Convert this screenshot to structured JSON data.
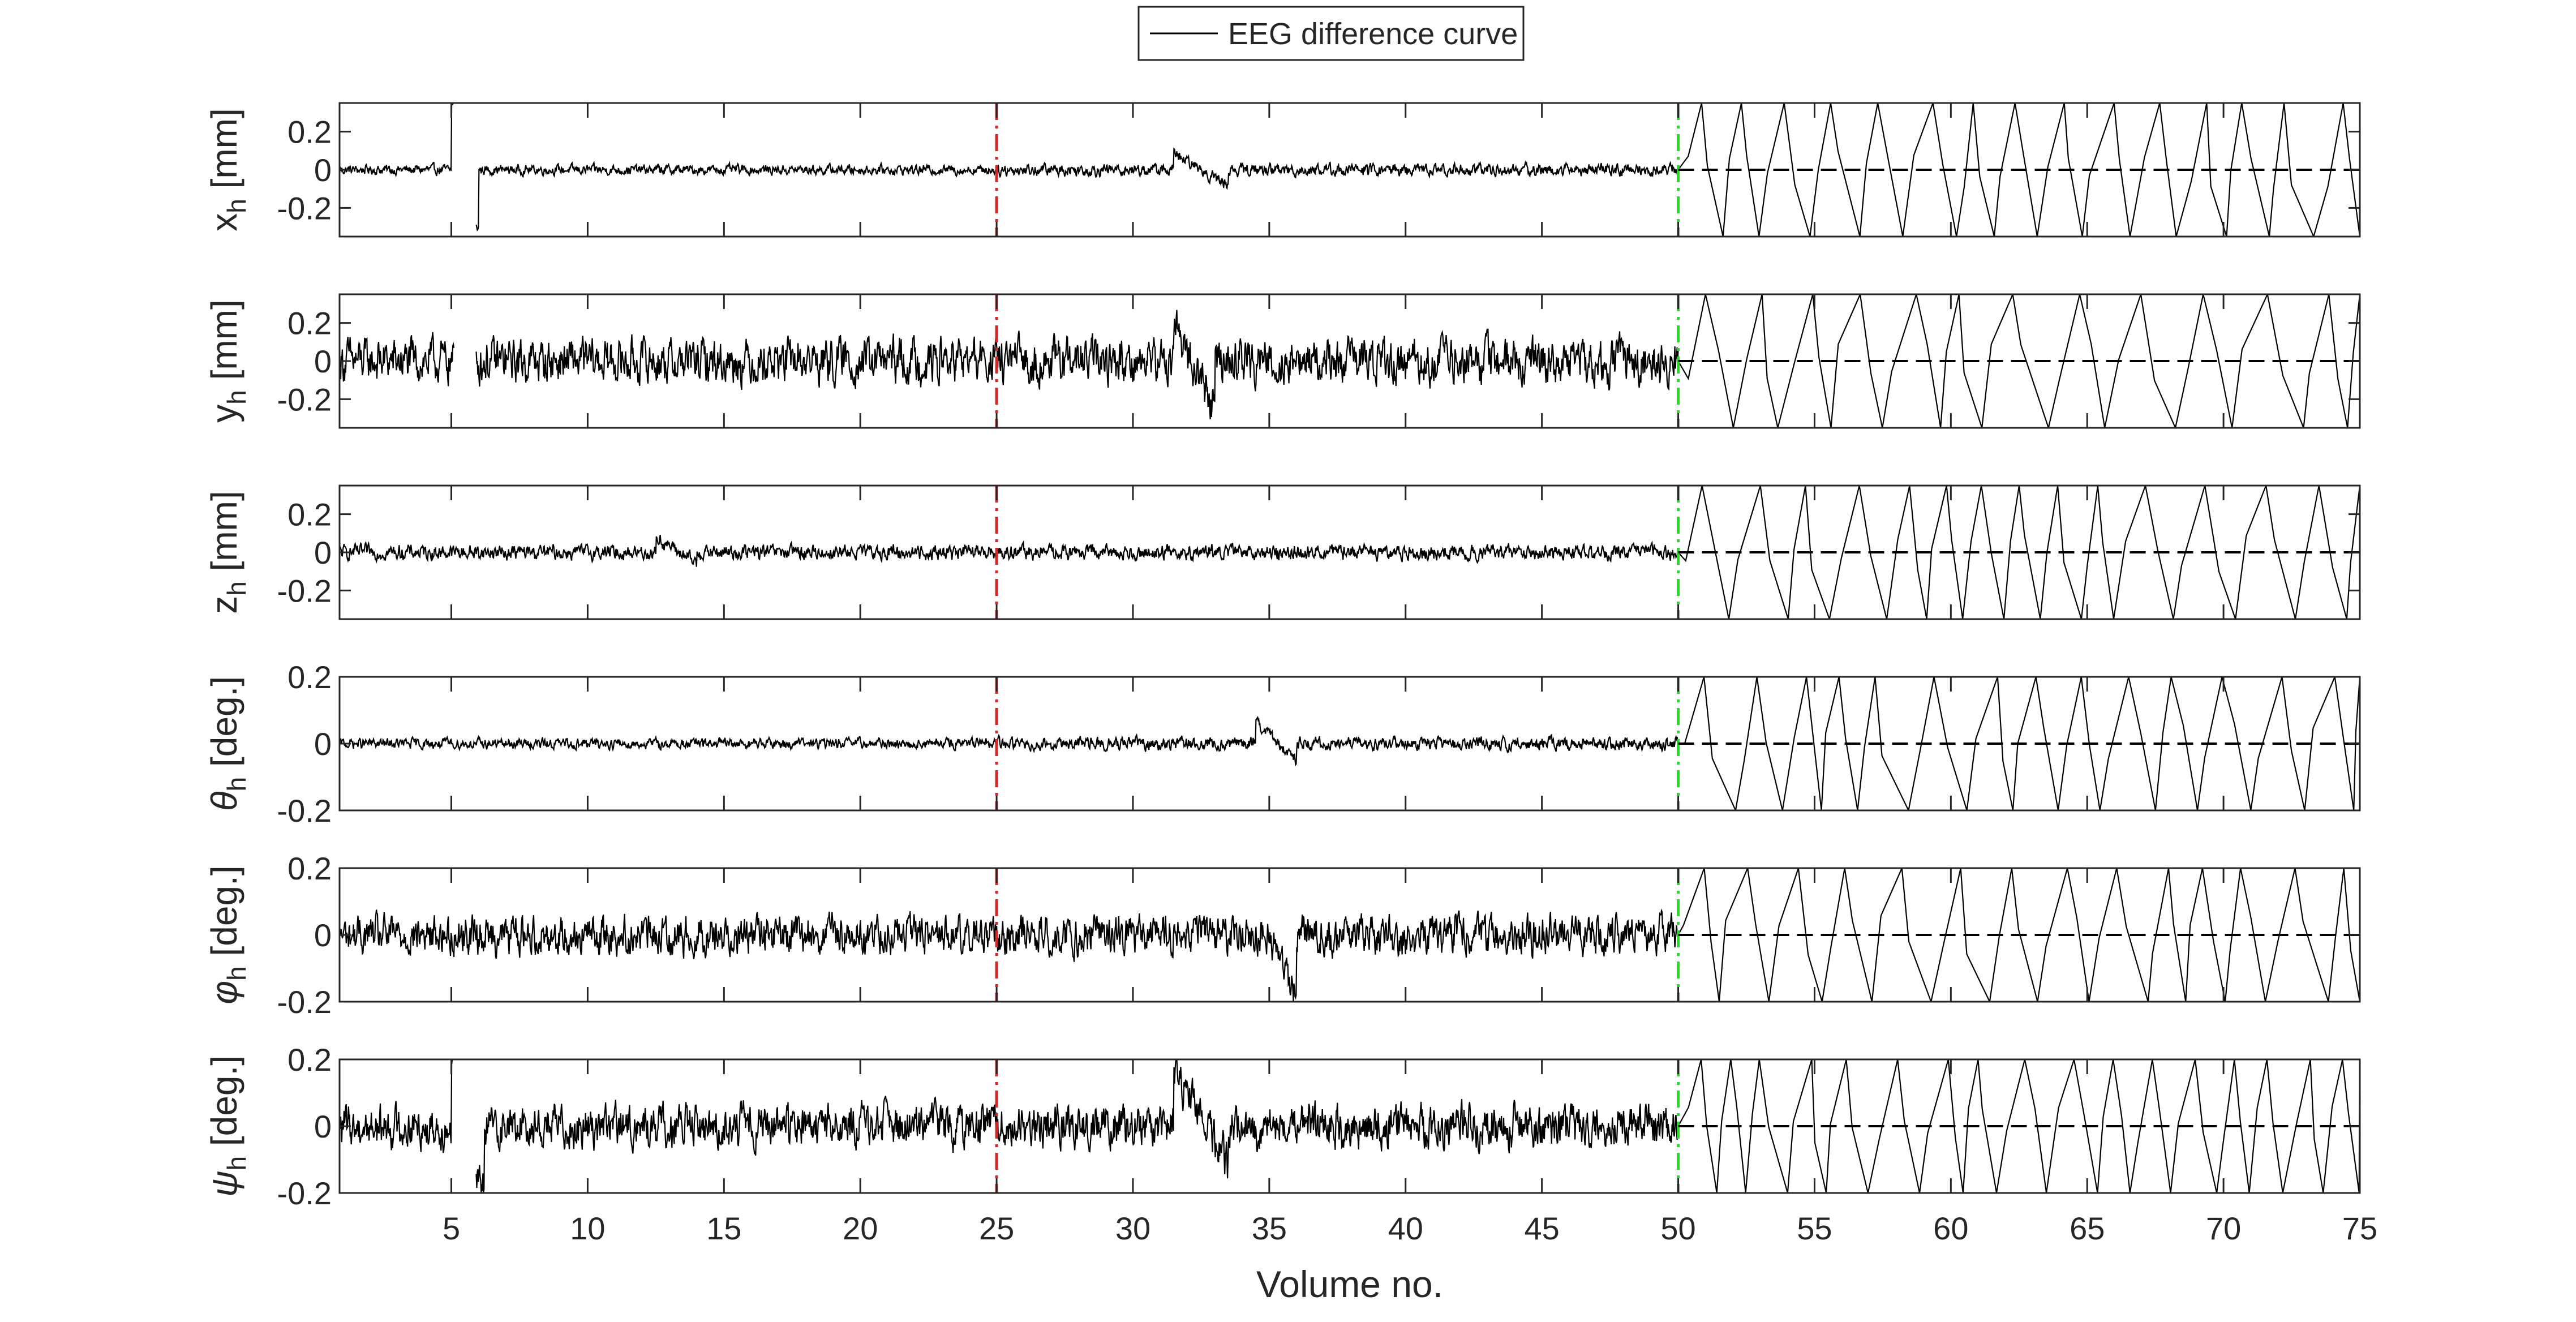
{
  "chart_data": {
    "type": "line",
    "legend": {
      "position": "top-center",
      "entries": [
        "EEG difference curve"
      ]
    },
    "xlabel": "Volume no.",
    "xlim": [
      0.9,
      75
    ],
    "xticks": [
      5,
      10,
      15,
      20,
      25,
      30,
      35,
      40,
      45,
      50,
      55,
      60,
      65,
      70,
      75
    ],
    "vertical_markers": [
      {
        "x": 25,
        "color": "#d62728",
        "style": "dash-dot"
      },
      {
        "x": 50,
        "color": "#1ee01e",
        "style": "dash-dot"
      }
    ],
    "zero_reference": {
      "y": 0,
      "x_from": 50,
      "x_to": 75,
      "style": "dashed",
      "color": "#000000"
    },
    "line_color": "#000000",
    "grid": false,
    "panels": [
      {
        "ylabel_main": "x",
        "ylabel_sub": "h",
        "ylabel_unit": " [mm]",
        "ylabel_italic": false,
        "ylim": [
          -0.35,
          0.35
        ],
        "yticks": [
          -0.2,
          0,
          0.2
        ],
        "yticklabels": [
          "-0.2",
          "0",
          "0.2"
        ],
        "noise_pre25": 0.02,
        "noise_25_50": 0.025,
        "features": [
          {
            "x": [
              5.0,
              5.3
            ],
            "y": [
              0.35,
              0.35
            ]
          },
          {
            "x": [
              5.5,
              6.0
            ],
            "y": [
              -0.33,
              -0.3
            ]
          },
          {
            "x": [
              31.5,
              33.5
            ],
            "y": [
              0.08,
              -0.08
            ]
          }
        ],
        "post50_wraps": 30
      },
      {
        "ylabel_main": "y",
        "ylabel_sub": "h",
        "ylabel_unit": " [mm]",
        "ylabel_italic": false,
        "ylim": [
          -0.35,
          0.35
        ],
        "yticks": [
          -0.2,
          0,
          0.2
        ],
        "yticklabels": [
          "-0.2",
          "0",
          "0.2"
        ],
        "noise_pre25": 0.09,
        "noise_25_50": 0.09,
        "features": [
          {
            "x": [
              31.5,
              33.0
            ],
            "y": [
              0.2,
              -0.25
            ]
          }
        ],
        "post50_wraps": 26
      },
      {
        "ylabel_main": "z",
        "ylabel_sub": "h",
        "ylabel_unit": " [mm]",
        "ylabel_italic": false,
        "ylim": [
          -0.35,
          0.35
        ],
        "yticks": [
          -0.2,
          0,
          0.2
        ],
        "yticklabels": [
          "-0.2",
          "0",
          "0.2"
        ],
        "noise_pre25": 0.03,
        "noise_25_50": 0.03,
        "features": [
          {
            "x": [
              12.5,
              14.0
            ],
            "y": [
              0.08,
              -0.06
            ]
          }
        ],
        "post50_wraps": 30
      },
      {
        "ylabel_main": "θ",
        "ylabel_sub": "h",
        "ylabel_unit": " [deg.]",
        "ylabel_italic": true,
        "ylim": [
          -0.2,
          0.2
        ],
        "yticks": [
          -0.2,
          0,
          0.2
        ],
        "yticklabels": [
          "-0.2",
          "0",
          "0.2"
        ],
        "noise_pre25": 0.012,
        "noise_25_50": 0.015,
        "features": [
          {
            "x": [
              34.5,
              36.0
            ],
            "y": [
              0.06,
              -0.05
            ]
          }
        ],
        "post50_wraps": 28
      },
      {
        "ylabel_main": "φ",
        "ylabel_sub": "h",
        "ylabel_unit": " [deg.]",
        "ylabel_italic": true,
        "ylim": [
          -0.2,
          0.2
        ],
        "yticks": [
          -0.2,
          0,
          0.2
        ],
        "yticklabels": [
          "-0.2",
          "0",
          "0.2"
        ],
        "noise_pre25": 0.045,
        "noise_25_50": 0.045,
        "features": [
          {
            "x": [
              35.0,
              36.0
            ],
            "y": [
              -0.02,
              -0.18
            ]
          }
        ],
        "post50_wraps": 28
      },
      {
        "ylabel_main": "ψ",
        "ylabel_sub": "h",
        "ylabel_unit": " [deg.]",
        "ylabel_italic": true,
        "ylim": [
          -0.2,
          0.2
        ],
        "yticks": [
          -0.2,
          0,
          0.2
        ],
        "yticklabels": [
          "-0.2",
          "0",
          "0.2"
        ],
        "noise_pre25": 0.05,
        "noise_25_50": 0.05,
        "features": [
          {
            "x": [
              5.0,
              5.3
            ],
            "y": [
              0.2,
              0.2
            ]
          },
          {
            "x": [
              5.5,
              6.2
            ],
            "y": [
              -0.2,
              -0.18
            ]
          },
          {
            "x": [
              31.5,
              33.5
            ],
            "y": [
              0.18,
              -0.12
            ]
          }
        ],
        "post50_wraps": 32
      }
    ]
  }
}
